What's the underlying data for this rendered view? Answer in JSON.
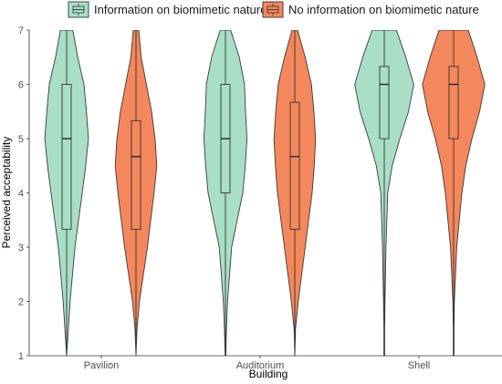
{
  "chart_data": {
    "type": "violin",
    "title": "",
    "xlabel": "Building",
    "ylabel": "Perceived acceptability",
    "ylim": [
      1,
      7
    ],
    "yticks": [
      1,
      2,
      3,
      4,
      5,
      6,
      7
    ],
    "grid": false,
    "legend_position": "top",
    "categories": [
      "Pavilion",
      "Auditorium",
      "Shell"
    ],
    "series": [
      {
        "name": "Information on biomimetic nature",
        "color": "#a8dfc6",
        "boxes": [
          {
            "min": 1,
            "q1": 3.33,
            "median": 5,
            "q3": 6,
            "max": 7
          },
          {
            "min": 1,
            "q1": 4,
            "median": 5,
            "q3": 6,
            "max": 7
          },
          {
            "min": 1,
            "q1": 5,
            "median": 6,
            "q3": 6.33,
            "max": 7
          }
        ],
        "density": [
          [
            [
              1,
              0
            ],
            [
              1.5,
              0.05
            ],
            [
              2,
              0.1
            ],
            [
              3,
              0.24
            ],
            [
              4,
              0.45
            ],
            [
              4.5,
              0.55
            ],
            [
              5,
              0.63
            ],
            [
              5.5,
              0.57
            ],
            [
              6,
              0.5
            ],
            [
              6.5,
              0.32
            ],
            [
              7,
              0.18
            ]
          ],
          [
            [
              1,
              0.01
            ],
            [
              1.5,
              0.03
            ],
            [
              2,
              0.06
            ],
            [
              3,
              0.18
            ],
            [
              4,
              0.5
            ],
            [
              4.5,
              0.57
            ],
            [
              5,
              0.62
            ],
            [
              5.5,
              0.58
            ],
            [
              6,
              0.55
            ],
            [
              6.5,
              0.4
            ],
            [
              7,
              0.15
            ]
          ],
          [
            [
              1,
              0.01
            ],
            [
              1.5,
              0.01
            ],
            [
              2,
              0.02
            ],
            [
              3,
              0.05
            ],
            [
              4,
              0.1
            ],
            [
              4.5,
              0.23
            ],
            [
              5,
              0.45
            ],
            [
              5.5,
              0.7
            ],
            [
              6,
              0.85
            ],
            [
              6.5,
              0.62
            ],
            [
              7,
              0.35
            ]
          ]
        ]
      },
      {
        "name": "No information on biomimetic nature",
        "color": "#f4875b",
        "boxes": [
          {
            "min": 1,
            "q1": 3.33,
            "median": 4.67,
            "q3": 5.33,
            "max": 7
          },
          {
            "min": 1,
            "q1": 3.33,
            "median": 4.67,
            "q3": 5.67,
            "max": 7
          },
          {
            "min": 1,
            "q1": 5,
            "median": 6,
            "q3": 6.33,
            "max": 7
          }
        ],
        "density": [
          [
            [
              1,
              0
            ],
            [
              1.5,
              0.03
            ],
            [
              2,
              0.1
            ],
            [
              3,
              0.33
            ],
            [
              4,
              0.52
            ],
            [
              4.5,
              0.6
            ],
            [
              5,
              0.55
            ],
            [
              5.5,
              0.45
            ],
            [
              6,
              0.3
            ],
            [
              6.5,
              0.15
            ],
            [
              7,
              0.08
            ]
          ],
          [
            [
              1,
              0
            ],
            [
              1.5,
              0.02
            ],
            [
              2,
              0.1
            ],
            [
              3,
              0.3
            ],
            [
              4,
              0.5
            ],
            [
              4.5,
              0.56
            ],
            [
              5,
              0.6
            ],
            [
              5.5,
              0.55
            ],
            [
              6,
              0.48
            ],
            [
              6.5,
              0.3
            ],
            [
              7,
              0.08
            ]
          ],
          [
            [
              1,
              0.01
            ],
            [
              1.5,
              0.01
            ],
            [
              2,
              0.02
            ],
            [
              3,
              0.09
            ],
            [
              4,
              0.24
            ],
            [
              4.5,
              0.35
            ],
            [
              5,
              0.53
            ],
            [
              5.5,
              0.75
            ],
            [
              6,
              0.9
            ],
            [
              6.5,
              0.68
            ],
            [
              7,
              0.42
            ]
          ]
        ]
      }
    ]
  }
}
